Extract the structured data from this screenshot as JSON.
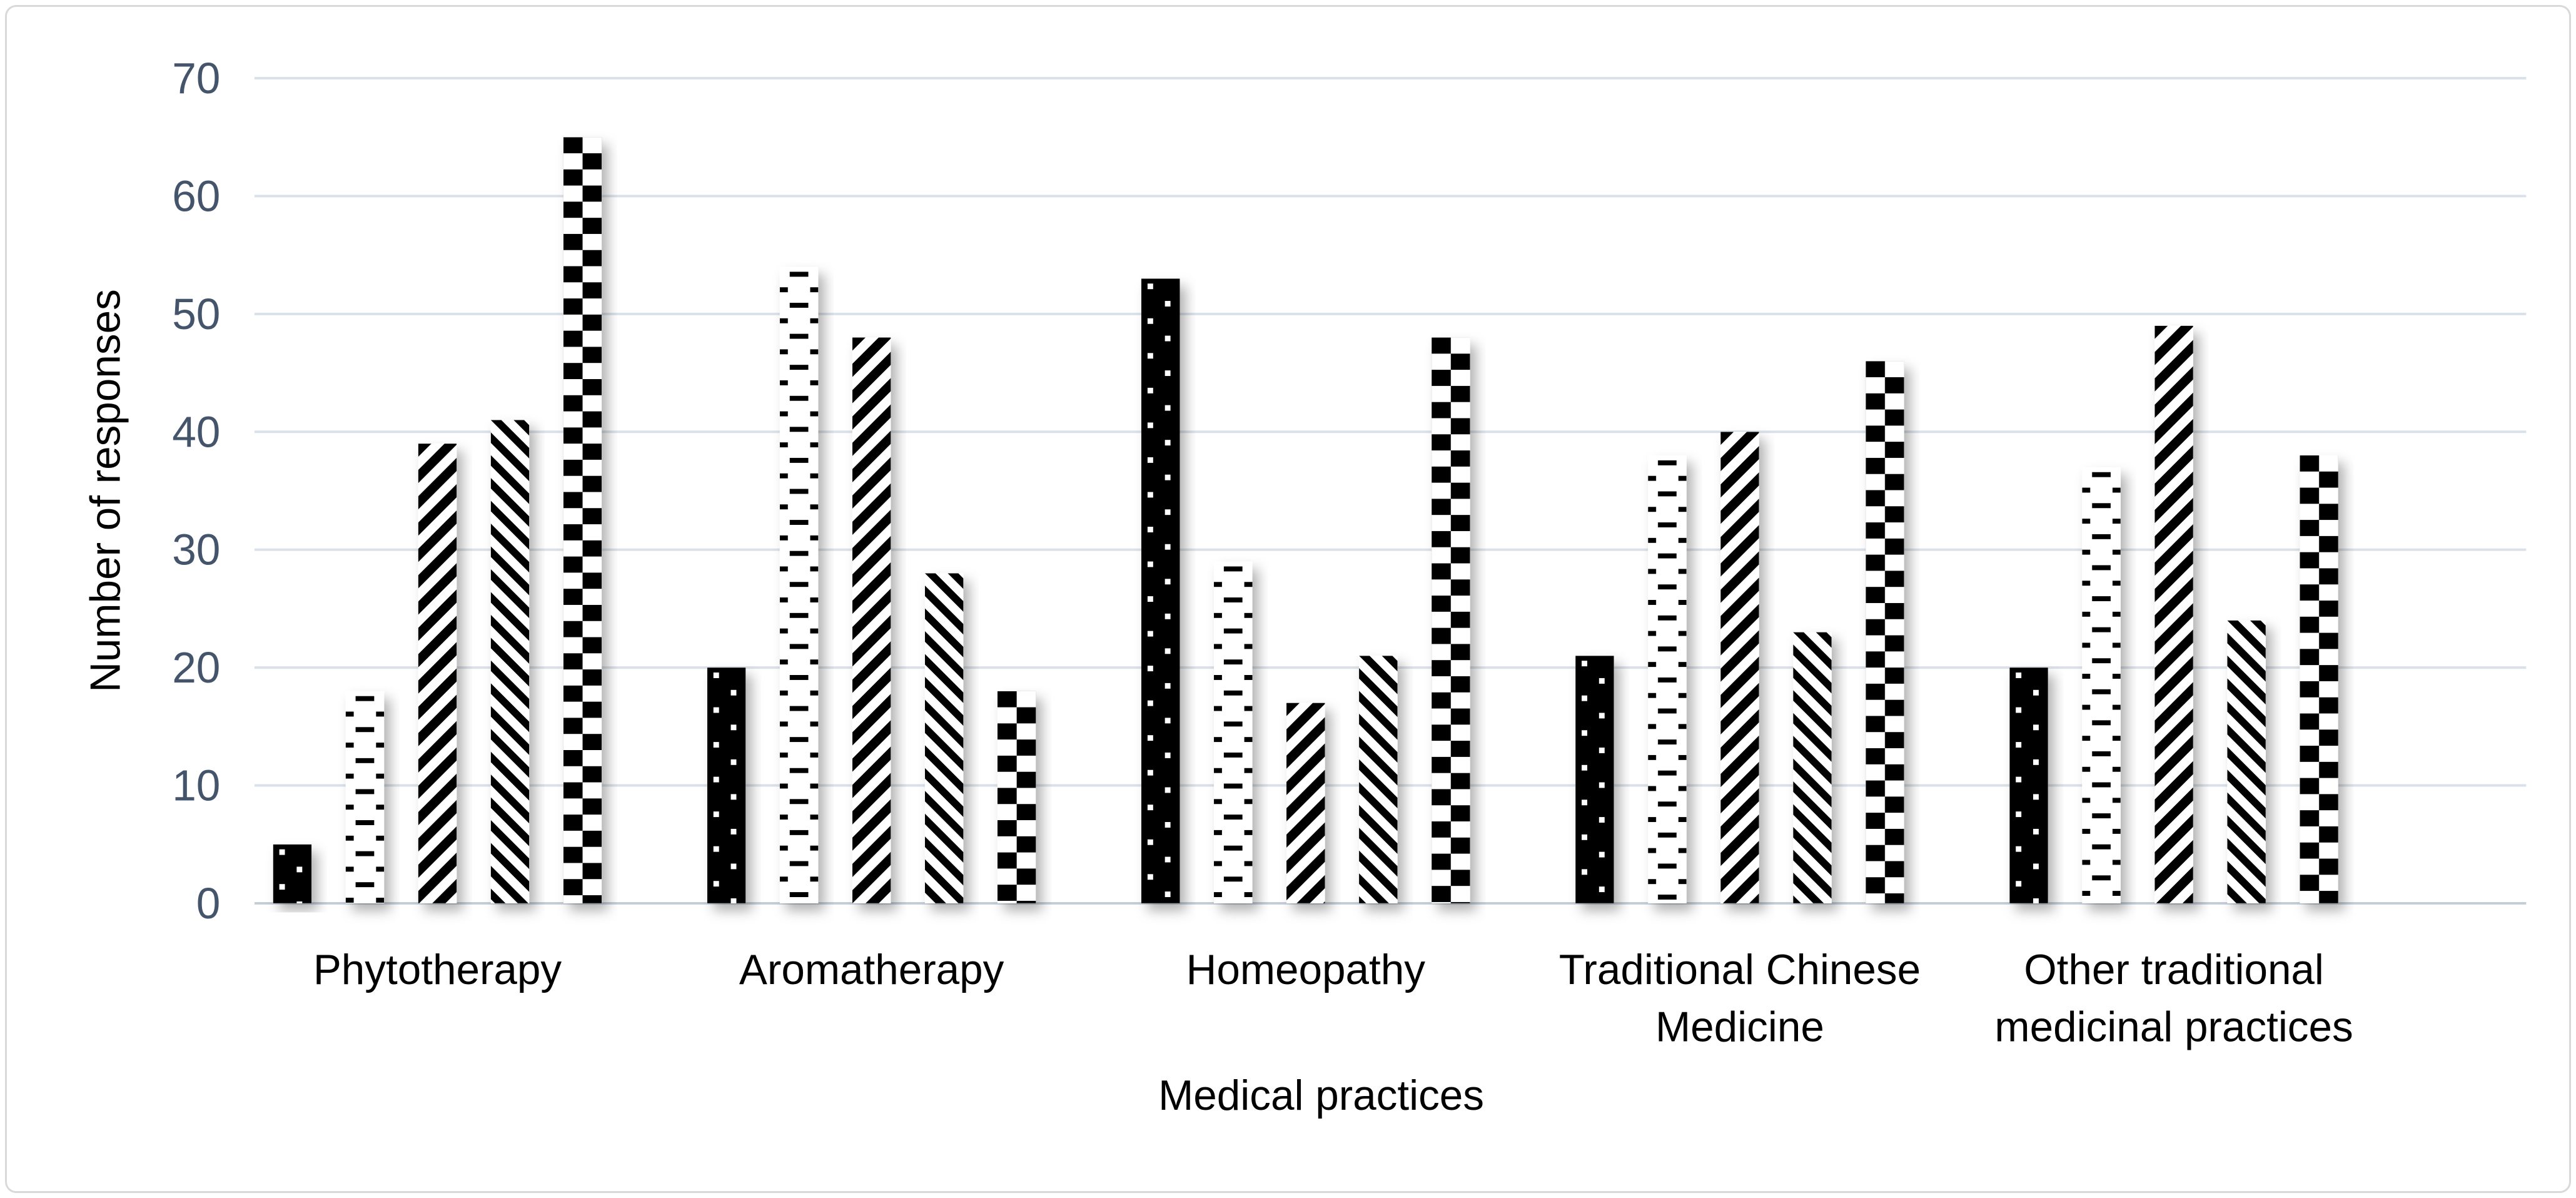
{
  "colors": {
    "background": "#FFFFFF",
    "figure_border": "#D9D9D9",
    "gridline": "#DAE1E8",
    "axis_line": "#C3CDD7",
    "tick_label": "#44546A",
    "text": "#000000",
    "bar_ink": "#000000",
    "bar_paper": "#FFFFFF"
  },
  "chart_data": {
    "type": "bar",
    "title": "",
    "xlabel": "Medical practices",
    "ylabel": "Number of responses",
    "ylim": [
      0,
      70
    ],
    "yticks": [
      0,
      10,
      20,
      30,
      40,
      50,
      60,
      70
    ],
    "grid": "horizontal gridlines on",
    "legend": "none",
    "categories": [
      "Phytotherapy",
      "Aromatherapy",
      "Homeopathy",
      "Traditional Chinese Medicine",
      "Other traditional medicinal practices"
    ],
    "category_label_lines": [
      [
        "Phytotherapy"
      ],
      [
        "Aromatherapy"
      ],
      [
        "Homeopathy"
      ],
      [
        "Traditional Chinese",
        "Medicine"
      ],
      [
        "Other traditional",
        "medicinal practices"
      ]
    ],
    "series": [
      {
        "name": "series-1-black-with-white-dots",
        "pattern": "dots-on-black",
        "values": [
          5,
          20,
          53,
          21,
          20
        ]
      },
      {
        "name": "series-2-horizontal-dashes",
        "pattern": "horizontal-dashes",
        "values": [
          18,
          54,
          29,
          38,
          37
        ]
      },
      {
        "name": "series-3-upward-diagonal-stripes",
        "pattern": "diagonal-up",
        "values": [
          39,
          48,
          17,
          40,
          49
        ]
      },
      {
        "name": "series-4-downward-diagonal-stripes",
        "pattern": "diagonal-down",
        "values": [
          41,
          28,
          21,
          23,
          24
        ]
      },
      {
        "name": "series-5-checkerboard",
        "pattern": "checkerboard",
        "values": [
          65,
          18,
          48,
          46,
          38
        ]
      }
    ]
  }
}
